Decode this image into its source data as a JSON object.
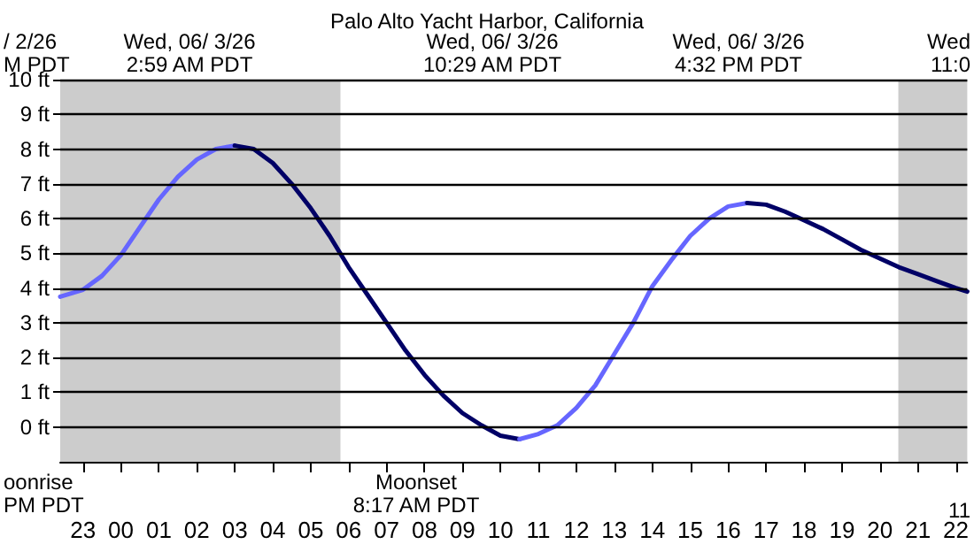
{
  "chart_data": {
    "type": "line",
    "title": "Palo Alto Yacht Harbor, California",
    "xlim": [
      "--06-02T22:24",
      "--06-03T22:18"
    ],
    "xticks": [
      {
        "value": "--06-02T23:00",
        "label": "23"
      },
      {
        "value": "--06-03T00:00",
        "label": "00"
      },
      {
        "value": "--06-03T01:00",
        "label": "01"
      },
      {
        "value": "--06-03T02:00",
        "label": "02"
      },
      {
        "value": "--06-03T03:00",
        "label": "03"
      },
      {
        "value": "--06-03T04:00",
        "label": "04"
      },
      {
        "value": "--06-03T05:00",
        "label": "05"
      },
      {
        "value": "--06-03T06:00",
        "label": "06"
      },
      {
        "value": "--06-03T07:00",
        "label": "07"
      },
      {
        "value": "--06-03T08:00",
        "label": "08"
      },
      {
        "value": "--06-03T09:00",
        "label": "09"
      },
      {
        "value": "--06-03T10:00",
        "label": "10"
      },
      {
        "value": "--06-03T11:00",
        "label": "11"
      },
      {
        "value": "--06-03T12:00",
        "label": "12"
      },
      {
        "value": "--06-03T13:00",
        "label": "13"
      },
      {
        "value": "--06-03T14:00",
        "label": "14"
      },
      {
        "value": "--06-03T15:00",
        "label": "15"
      },
      {
        "value": "--06-03T16:00",
        "label": "16"
      },
      {
        "value": "--06-03T17:00",
        "label": "17"
      },
      {
        "value": "--06-03T18:00",
        "label": "18"
      },
      {
        "value": "--06-03T19:00",
        "label": "19"
      },
      {
        "value": "--06-03T20:00",
        "label": "20"
      },
      {
        "value": "--06-03T21:00",
        "label": "21"
      },
      {
        "value": "--06-03T22:00",
        "label": "22"
      }
    ],
    "ylim": [
      -1,
      10
    ],
    "yticks": [
      {
        "value": 0,
        "label": "0 ft"
      },
      {
        "value": 1,
        "label": "1 ft"
      },
      {
        "value": 2,
        "label": "2 ft"
      },
      {
        "value": 3,
        "label": "3 ft"
      },
      {
        "value": 4,
        "label": "4 ft"
      },
      {
        "value": 5,
        "label": "5 ft"
      },
      {
        "value": 6,
        "label": "6 ft"
      },
      {
        "value": 7,
        "label": "7 ft"
      },
      {
        "value": 8,
        "label": "8 ft"
      },
      {
        "value": 9,
        "label": "9 ft"
      },
      {
        "value": 10,
        "label": "10 ft"
      }
    ],
    "grid": "y",
    "legend": false,
    "marker": "none",
    "line_style": "solid",
    "series": [
      {
        "color": "#6666ff",
        "x": [
          "--06-02T22:24",
          "--06-02T23:00",
          "--06-02T23:30",
          "--06-03T00:00",
          "--06-03T00:30",
          "--06-03T01:00",
          "--06-03T01:30",
          "--06-03T02:00",
          "--06-03T02:30",
          "--06-03T03:00"
        ],
        "values": [
          3.75,
          3.95,
          4.35,
          4.95,
          5.75,
          6.55,
          7.2,
          7.7,
          8.0,
          8.1
        ]
      },
      {
        "color": "#000066",
        "x": [
          "--06-03T03:00",
          "--06-03T03:30",
          "--06-03T04:00",
          "--06-03T04:30",
          "--06-03T05:00",
          "--06-03T05:30",
          "--06-03T06:00",
          "--06-03T06:30",
          "--06-03T07:00",
          "--06-03T07:30",
          "--06-03T08:00",
          "--06-03T08:30",
          "--06-03T09:00",
          "--06-03T09:30",
          "--06-03T10:00",
          "--06-03T10:30"
        ],
        "values": [
          8.1,
          8.0,
          7.6,
          7.0,
          6.3,
          5.5,
          4.6,
          3.8,
          3.0,
          2.2,
          1.5,
          0.9,
          0.4,
          0.05,
          -0.25,
          -0.35
        ]
      },
      {
        "color": "#6666ff",
        "x": [
          "--06-03T10:30",
          "--06-03T11:00",
          "--06-03T11:30",
          "--06-03T12:00",
          "--06-03T12:30",
          "--06-03T13:00",
          "--06-03T13:30",
          "--06-03T14:00",
          "--06-03T14:30",
          "--06-03T15:00",
          "--06-03T15:30",
          "--06-03T16:00",
          "--06-03T16:30"
        ],
        "values": [
          -0.35,
          -0.2,
          0.05,
          0.55,
          1.2,
          2.1,
          3.0,
          4.05,
          4.8,
          5.5,
          6.0,
          6.35,
          6.45
        ]
      },
      {
        "color": "#000066",
        "x": [
          "--06-03T16:30",
          "--06-03T17:00",
          "--06-03T17:30",
          "--06-03T18:00",
          "--06-03T18:30",
          "--06-03T19:00",
          "--06-03T19:30",
          "--06-03T20:00",
          "--06-03T20:30",
          "--06-03T21:00",
          "--06-03T21:30",
          "--06-03T22:00",
          "--06-03T22:18"
        ],
        "values": [
          6.45,
          6.4,
          6.2,
          5.95,
          5.7,
          5.4,
          5.1,
          4.85,
          4.6,
          4.4,
          4.2,
          4.0,
          3.9
        ]
      }
    ],
    "bands": [
      {
        "axis": "x",
        "from": "--06-02T22:24",
        "to": "--06-03T05:47",
        "color": "#cccccc"
      },
      {
        "axis": "x",
        "from": "--06-03T20:29",
        "to": "--06-03T22:18",
        "color": "#cccccc"
      }
    ],
    "annotations": [
      "Wed, 06/ 3/26\n2:59 AM PDT",
      "Wed, 06/ 3/26\n10:29 AM PDT",
      "Wed, 06/ 3/26\n4:32 PM PDT",
      "Moonset\n8:17 AM PDT",
      "/ 2/26\nM PDT",
      "oonrise\nPM PDT",
      "Wed\n11:0",
      "11"
    ]
  }
}
